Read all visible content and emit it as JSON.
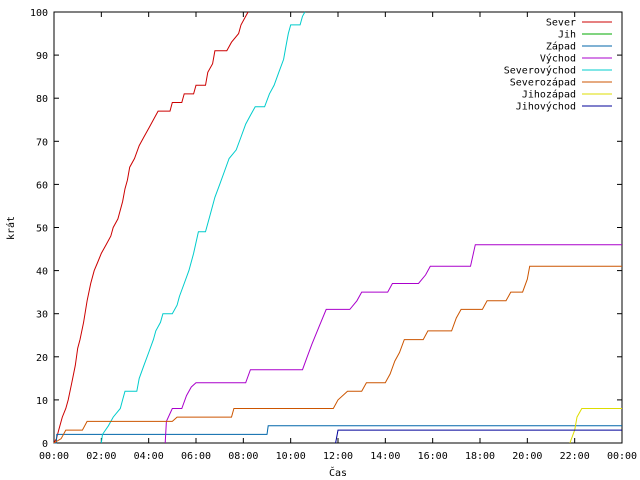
{
  "chart_data": {
    "type": "line",
    "title": "",
    "xlabel": "Čas",
    "ylabel": "krát",
    "xlim": [
      0,
      24
    ],
    "ylim": [
      0,
      100
    ],
    "x_ticks": [
      {
        "value": 0,
        "label": "00:00"
      },
      {
        "value": 2,
        "label": "02:00"
      },
      {
        "value": 4,
        "label": "04:00"
      },
      {
        "value": 6,
        "label": "06:00"
      },
      {
        "value": 8,
        "label": "08:00"
      },
      {
        "value": 10,
        "label": "10:00"
      },
      {
        "value": 12,
        "label": "12:00"
      },
      {
        "value": 14,
        "label": "14:00"
      },
      {
        "value": 16,
        "label": "16:00"
      },
      {
        "value": 18,
        "label": "18:00"
      },
      {
        "value": 20,
        "label": "20:00"
      },
      {
        "value": 22,
        "label": "22:00"
      },
      {
        "value": 24,
        "label": "00:00"
      }
    ],
    "y_ticks": [
      {
        "value": 0,
        "label": "0"
      },
      {
        "value": 10,
        "label": "10"
      },
      {
        "value": 20,
        "label": "20"
      },
      {
        "value": 30,
        "label": "30"
      },
      {
        "value": 40,
        "label": "40"
      },
      {
        "value": 50,
        "label": "50"
      },
      {
        "value": 60,
        "label": "60"
      },
      {
        "value": 70,
        "label": "70"
      },
      {
        "value": 80,
        "label": "80"
      },
      {
        "value": 90,
        "label": "90"
      },
      {
        "value": 100,
        "label": "100"
      }
    ],
    "grid": false,
    "legend": "top-right",
    "series": [
      {
        "name": "Sever",
        "color": "#cc0000",
        "points": [
          [
            0,
            0
          ],
          [
            0.1,
            1
          ],
          [
            0.2,
            3
          ],
          [
            0.35,
            6
          ],
          [
            0.5,
            8
          ],
          [
            0.6,
            10
          ],
          [
            0.75,
            14
          ],
          [
            0.9,
            18
          ],
          [
            1.0,
            22
          ],
          [
            1.1,
            24
          ],
          [
            1.25,
            28
          ],
          [
            1.4,
            33
          ],
          [
            1.55,
            37
          ],
          [
            1.7,
            40
          ],
          [
            1.85,
            42
          ],
          [
            2.0,
            44
          ],
          [
            2.2,
            46
          ],
          [
            2.4,
            48
          ],
          [
            2.5,
            50
          ],
          [
            2.7,
            52
          ],
          [
            2.9,
            56
          ],
          [
            3.0,
            59
          ],
          [
            3.1,
            61
          ],
          [
            3.2,
            64
          ],
          [
            3.4,
            66
          ],
          [
            3.6,
            69
          ],
          [
            3.8,
            71
          ],
          [
            4.0,
            73
          ],
          [
            4.2,
            75
          ],
          [
            4.4,
            77
          ],
          [
            4.9,
            77
          ],
          [
            5.0,
            79
          ],
          [
            5.4,
            79
          ],
          [
            5.5,
            81
          ],
          [
            5.9,
            81
          ],
          [
            6.0,
            83
          ],
          [
            6.4,
            83
          ],
          [
            6.5,
            86
          ],
          [
            6.7,
            88
          ],
          [
            6.8,
            91
          ],
          [
            7.3,
            91
          ],
          [
            7.5,
            93
          ],
          [
            7.8,
            95
          ],
          [
            7.9,
            97
          ],
          [
            8.1,
            99
          ],
          [
            8.2,
            100
          ]
        ]
      },
      {
        "name": "Jih",
        "color": "#00aa00",
        "points": []
      },
      {
        "name": "Západ",
        "color": "#0066aa",
        "points": [
          [
            0,
            0
          ],
          [
            0.1,
            0
          ],
          [
            0.12,
            2
          ],
          [
            2.4,
            2
          ],
          [
            2.45,
            2
          ],
          [
            9.0,
            2
          ],
          [
            9.05,
            4
          ],
          [
            24,
            4
          ]
        ]
      },
      {
        "name": "Východ",
        "color": "#aa00cc",
        "points": [
          [
            4.7,
            0
          ],
          [
            4.75,
            5
          ],
          [
            5.0,
            8
          ],
          [
            5.4,
            8
          ],
          [
            5.6,
            11
          ],
          [
            5.8,
            13
          ],
          [
            6.0,
            14
          ],
          [
            8.1,
            14
          ],
          [
            8.3,
            17
          ],
          [
            10.5,
            17
          ],
          [
            10.7,
            20
          ],
          [
            10.9,
            23
          ],
          [
            11.2,
            27
          ],
          [
            11.5,
            31
          ],
          [
            12.5,
            31
          ],
          [
            12.8,
            33
          ],
          [
            13.0,
            35
          ],
          [
            14.1,
            35
          ],
          [
            14.3,
            37
          ],
          [
            15.4,
            37
          ],
          [
            15.7,
            39
          ],
          [
            15.9,
            41
          ],
          [
            17.6,
            41
          ],
          [
            17.8,
            46
          ],
          [
            24,
            46
          ]
        ]
      },
      {
        "name": "Severovýchod",
        "color": "#00cccc",
        "points": [
          [
            2.0,
            0
          ],
          [
            2.05,
            2
          ],
          [
            2.3,
            4
          ],
          [
            2.5,
            6
          ],
          [
            2.8,
            8
          ],
          [
            2.9,
            10
          ],
          [
            3.0,
            12
          ],
          [
            3.5,
            12
          ],
          [
            3.6,
            15
          ],
          [
            3.8,
            18
          ],
          [
            4.0,
            21
          ],
          [
            4.2,
            24
          ],
          [
            4.3,
            26
          ],
          [
            4.5,
            28
          ],
          [
            4.6,
            30
          ],
          [
            5.0,
            30
          ],
          [
            5.2,
            32
          ],
          [
            5.3,
            34
          ],
          [
            5.5,
            37
          ],
          [
            5.7,
            40
          ],
          [
            5.9,
            44
          ],
          [
            6.1,
            49
          ],
          [
            6.4,
            49
          ],
          [
            6.6,
            53
          ],
          [
            6.8,
            57
          ],
          [
            7.0,
            60
          ],
          [
            7.2,
            63
          ],
          [
            7.4,
            66
          ],
          [
            7.7,
            68
          ],
          [
            7.9,
            71
          ],
          [
            8.1,
            74
          ],
          [
            8.3,
            76
          ],
          [
            8.5,
            78
          ],
          [
            8.9,
            78
          ],
          [
            9.1,
            81
          ],
          [
            9.3,
            83
          ],
          [
            9.5,
            86
          ],
          [
            9.7,
            89
          ],
          [
            9.8,
            92
          ],
          [
            9.9,
            95
          ],
          [
            10.0,
            97
          ],
          [
            10.4,
            97
          ],
          [
            10.5,
            99
          ],
          [
            10.6,
            100
          ]
        ]
      },
      {
        "name": "Severozápad",
        "color": "#cc5500",
        "points": [
          [
            0,
            0
          ],
          [
            0.3,
            1
          ],
          [
            0.5,
            3
          ],
          [
            1.2,
            3
          ],
          [
            1.4,
            5
          ],
          [
            5.0,
            5
          ],
          [
            5.2,
            6
          ],
          [
            7.5,
            6
          ],
          [
            7.6,
            8
          ],
          [
            11.8,
            8
          ],
          [
            12.0,
            10
          ],
          [
            12.4,
            12
          ],
          [
            13.0,
            12
          ],
          [
            13.2,
            14
          ],
          [
            14.0,
            14
          ],
          [
            14.2,
            16
          ],
          [
            14.4,
            19
          ],
          [
            14.6,
            21
          ],
          [
            14.8,
            24
          ],
          [
            15.6,
            24
          ],
          [
            15.8,
            26
          ],
          [
            16.8,
            26
          ],
          [
            17.0,
            29
          ],
          [
            17.2,
            31
          ],
          [
            18.1,
            31
          ],
          [
            18.3,
            33
          ],
          [
            19.1,
            33
          ],
          [
            19.3,
            35
          ],
          [
            19.8,
            35
          ],
          [
            20.0,
            38
          ],
          [
            20.1,
            41
          ],
          [
            24,
            41
          ]
        ]
      },
      {
        "name": "Jihozápad",
        "color": "#dddd00",
        "points": [
          [
            21.8,
            0
          ],
          [
            22.0,
            3
          ],
          [
            22.1,
            6
          ],
          [
            22.3,
            8
          ],
          [
            24,
            8
          ]
        ]
      },
      {
        "name": "Jihovýchod",
        "color": "#000099",
        "points": [
          [
            11.9,
            0
          ],
          [
            12.0,
            3
          ],
          [
            24,
            3
          ]
        ]
      }
    ]
  }
}
